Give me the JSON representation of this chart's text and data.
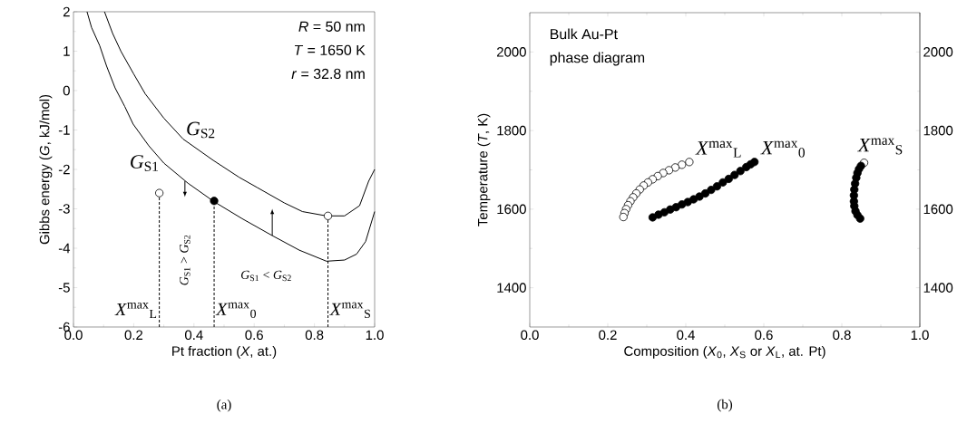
{
  "chart_data": [
    {
      "type": "line",
      "xlabel": "Pt fraction (*X*, at.)",
      "ylabel": "Gibbs energy (*G*, kJ/mol)",
      "xlim": [
        0,
        1
      ],
      "ylim": [
        -6,
        2
      ],
      "xticks": [
        {
          "value": 0,
          "label": "0.0"
        },
        {
          "value": 0.2,
          "label": "0.2"
        },
        {
          "value": 0.4,
          "label": "0.4"
        },
        {
          "value": 0.6,
          "label": "0.6"
        },
        {
          "value": 0.8,
          "label": "0.8"
        },
        {
          "value": 1,
          "label": "1.0"
        }
      ],
      "yticks": [
        -6,
        -5,
        -4,
        -3,
        -2,
        -1,
        0,
        1,
        2
      ],
      "series": [
        {
          "name": "*G*$_{S1}$",
          "color": "#000000",
          "marker": "none",
          "line_style": "solid",
          "x": [
            0.045,
            0.06,
            0.087,
            0.11,
            0.138,
            0.17,
            0.198,
            0.25,
            0.3,
            0.38,
            0.467,
            0.56,
            0.66,
            0.75,
            0.84,
            0.9,
            0.94,
            0.97,
            1.0
          ],
          "values": [
            2,
            1.6,
            1.14,
            0.62,
            0.07,
            -0.4,
            -0.85,
            -1.4,
            -1.84,
            -2.35,
            -2.82,
            -3.25,
            -3.68,
            -4.05,
            -4.33,
            -4.3,
            -4.15,
            -3.83,
            -3.07
          ]
        },
        {
          "name": "*G*$_{S2}$",
          "color": "#000000",
          "marker": "none",
          "line_style": "solid",
          "x": [
            0.103,
            0.13,
            0.158,
            0.2,
            0.238,
            0.3,
            0.364,
            0.464,
            0.55,
            0.61,
            0.7,
            0.76,
            0.84,
            0.9,
            0.95,
            0.98,
            1.0
          ],
          "values": [
            2,
            1.45,
            0.99,
            0.42,
            -0.08,
            -0.7,
            -1.23,
            -1.77,
            -2.2,
            -2.46,
            -2.85,
            -3.07,
            -3.18,
            -3.18,
            -2.92,
            -2.3,
            -2.0
          ]
        },
        {
          "color": "#000000",
          "marker": "none",
          "line_style": "dashed",
          "x": [
            0.285,
            0.285
          ],
          "values": [
            -6,
            -2.6
          ]
        },
        {
          "color": "#000000",
          "marker": "none",
          "line_style": "dashed",
          "x": [
            0.467,
            0.467
          ],
          "values": [
            -6,
            -2.8
          ]
        },
        {
          "color": "#000000",
          "marker": "none",
          "line_style": "dashed",
          "x": [
            0.845,
            0.845
          ],
          "values": [
            -6,
            -3.18
          ]
        },
        {
          "type": "scatter",
          "marker": "circle",
          "colors": [
            "#ffffff",
            "#000000",
            "#ffffff"
          ],
          "x": [
            0.285,
            0.467,
            0.845
          ],
          "values": [
            -2.6,
            -2.8,
            -3.18
          ]
        }
      ],
      "annotations": [
        "*R* = 50 nm",
        "*T* = 1650 K",
        "*r* = 32.8 nm",
        "*G*$_{S1}$ > *G*$_{S2}$",
        "*G*$_{S1}$ < *G*$_{S2}$",
        {
          "text": "*X*$^{max}$$_{L}$",
          "x": 0.285,
          "y": -5.8
        },
        {
          "text": "*X*$^{max}$$_{0}$",
          "x": 0.467,
          "y": -5.8
        },
        {
          "text": "*X*$^{max}$$_{S}$",
          "x": 0.845,
          "y": -5.8
        },
        "(a)"
      ]
    },
    {
      "type": "scatter",
      "xlabel": "Composition (*X*$_{0}$, *X*$_{S}$ or *X*$_{L}$, at. Pt)",
      "ylabel": "Temperature (*T*, K)",
      "xlim": [
        0,
        1
      ],
      "ylim": [
        1300,
        2100
      ],
      "y2lim": [
        1300,
        2100
      ],
      "xticks": [
        {
          "value": 0,
          "label": "0.0"
        },
        {
          "value": 0.2,
          "label": "0.2"
        },
        {
          "value": 0.4,
          "label": "0.4"
        },
        {
          "value": 0.6,
          "label": "0.6"
        },
        {
          "value": 0.8,
          "label": "0.8"
        },
        {
          "value": 1,
          "label": "1.0"
        }
      ],
      "yticks": [
        1400,
        1600,
        1800,
        2000
      ],
      "y2ticks": [
        1400,
        1600,
        1800,
        2000
      ],
      "series": [
        {
          "name": "*X*$^{max}$$_{L}$",
          "marker": "circle",
          "color": "#ffffff",
          "x": [
            0.24,
            0.243,
            0.247,
            0.252,
            0.258,
            0.265,
            0.273,
            0.282,
            0.292,
            0.303,
            0.315,
            0.328,
            0.342,
            0.357,
            0.373,
            0.39,
            0.409
          ],
          "values": [
            1580,
            1590,
            1600,
            1610,
            1620,
            1630,
            1640,
            1650,
            1660,
            1668,
            1676,
            1684,
            1692,
            1699,
            1706,
            1713,
            1720
          ]
        },
        {
          "name": "*X*$^{max}$$_{0}$",
          "marker": "circle",
          "color": "#000000",
          "x": [
            0.315,
            0.33,
            0.345,
            0.36,
            0.375,
            0.39,
            0.405,
            0.42,
            0.435,
            0.45,
            0.465,
            0.48,
            0.495,
            0.51,
            0.525,
            0.54,
            0.555,
            0.566,
            0.576
          ],
          "values": [
            1579,
            1586,
            1592,
            1599,
            1605,
            1612,
            1618,
            1625,
            1632,
            1640,
            1649,
            1658,
            1668,
            1677,
            1687,
            1697,
            1707,
            1714,
            1720
          ]
        },
        {
          "name": "*X*$^{max}$$_{S}$",
          "marker": "circle",
          "colors": [
            "#000000",
            "#000000",
            "#000000",
            "#000000",
            "#000000",
            "#000000",
            "#000000",
            "#000000",
            "#000000",
            "#000000",
            "#000000",
            "#000000",
            "#ffffff"
          ],
          "x": [
            0.847,
            0.84,
            0.835,
            0.832,
            0.831,
            0.831,
            0.832,
            0.834,
            0.837,
            0.84,
            0.844,
            0.849,
            0.857
          ],
          "values": [
            1576,
            1585,
            1595,
            1608,
            1620,
            1635,
            1650,
            1665,
            1680,
            1692,
            1702,
            1710,
            1718
          ]
        }
      ],
      "annotations": [
        "Bulk Au-Pt",
        "phase diagram",
        "(b)"
      ]
    }
  ]
}
